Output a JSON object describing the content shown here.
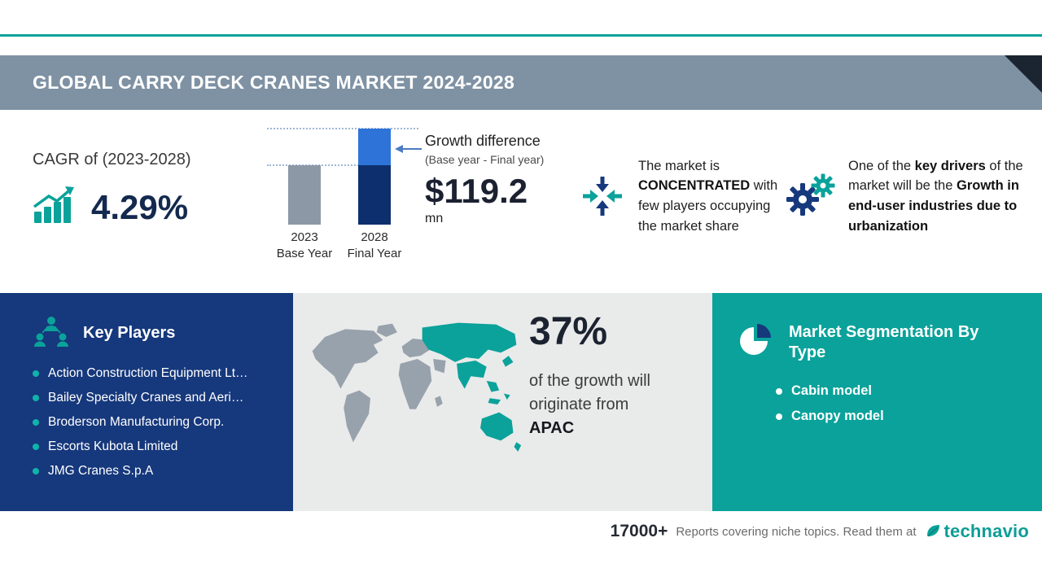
{
  "colors": {
    "teal": "#0aa29a",
    "navy": "#16387c",
    "slate_header": "#7f92a4",
    "bar_gray": "#8d98a6",
    "bar_blue_light": "#2e73d8",
    "bar_blue_dark": "#0e2f6d"
  },
  "header": {
    "title": "GLOBAL CARRY DECK CRANES MARKET 2024-2028"
  },
  "cagr": {
    "label": "CAGR of (2023-2028)",
    "value": "4.29%"
  },
  "growth": {
    "title": "Growth difference",
    "subtitle": "(Base year - Final year)",
    "value": "$119.2",
    "unit": "mn"
  },
  "chart_data": {
    "type": "bar",
    "title": "Growth difference (Base year - Final year)",
    "categories": [
      "2023",
      "2028"
    ],
    "category_sublabels": [
      "Base Year",
      "Final Year"
    ],
    "values": [
      62,
      100
    ],
    "annotation": "$119.2 mn",
    "legend_position": "none",
    "grid": "dotted guides at bar tops"
  },
  "concentration": {
    "pre": "The market is",
    "bold": "CONCENTRATED",
    "post": "with few players occupying the market share"
  },
  "driver": {
    "pre": "One of the",
    "bold1": "key drivers",
    "mid": "of the market will be the",
    "bold2": "Growth in end-user industries due to urbanization"
  },
  "key_players": {
    "title": "Key Players",
    "items": [
      "Action Construction Equipment Lt…",
      "Bailey Specialty Cranes and Aeri…",
      "Broderson Manufacturing Corp.",
      "Escorts Kubota Limited",
      "JMG Cranes S.p.A"
    ]
  },
  "regional": {
    "percent": "37%",
    "text": "of the growth will originate from",
    "region": "APAC"
  },
  "segmentation": {
    "title": "Market Segmentation By Type",
    "items": [
      "Cabin model",
      "Canopy model"
    ]
  },
  "footer": {
    "count": "17000+",
    "text": "Reports covering niche topics. Read them at",
    "brand": "technavio"
  }
}
